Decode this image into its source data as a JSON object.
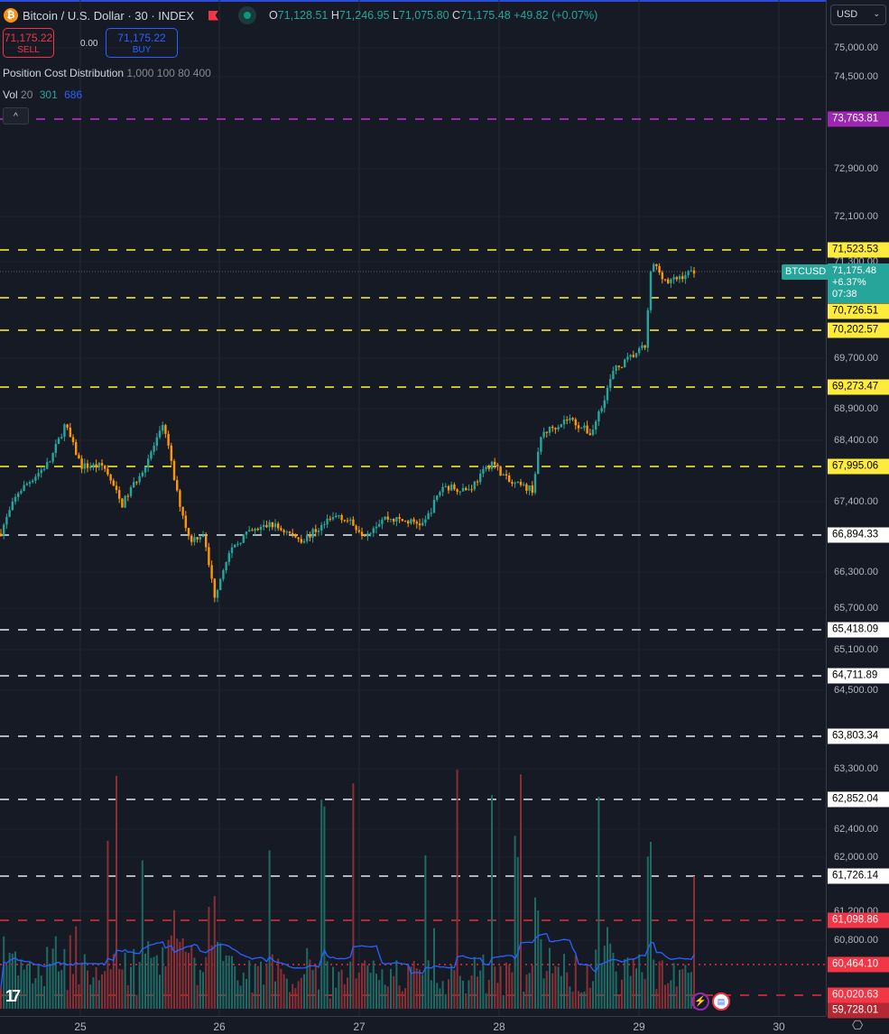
{
  "header": {
    "symbol_icon": "bitcoin-icon",
    "title": "Bitcoin / U.S. Dollar · 30 · INDEX",
    "ohlc": {
      "o_label": "O",
      "o": "71,128.51",
      "h_label": "H",
      "h": "71,246.95",
      "l_label": "L",
      "l": "71,075.80",
      "c_label": "C",
      "c": "71,175.48",
      "change": "+49.82 (+0.07%)"
    }
  },
  "trade": {
    "sell_price": "71,175.22",
    "sell_label": "SELL",
    "spread": "0.00",
    "buy_price": "71,175.22",
    "buy_label": "BUY"
  },
  "indicators": {
    "pcd_name": "Position Cost Distribution",
    "pcd_params": "1,000 100 80 400",
    "vol_name": "Vol",
    "vol_param": "20",
    "vol_value": "301",
    "vol_ma": "686"
  },
  "currency_select": "USD",
  "current_price": {
    "symbol": "BTCUSD",
    "price": "71,175.48",
    "change": "+6.37%",
    "countdown": "07:38"
  },
  "colors": {
    "up": "#26a69a",
    "down": "#ff9800",
    "bg": "#161a25",
    "vol_up": "#1d6b63",
    "vol_down": "#8a2f34",
    "vol_ma": "#2962ff"
  },
  "price_axis": [
    "75,000.00",
    "74,500.00",
    "72,900.00",
    "72,100.00",
    "71,300.00",
    "69,700.00",
    "68,900.00",
    "68,400.00",
    "67,400.00",
    "66,300.00",
    "65,700.00",
    "65,100.00",
    "64,500.00",
    "63,300.00",
    "62,400.00",
    "62,000.00",
    "61,200.00",
    "60,800.00"
  ],
  "levels": [
    {
      "price": "73,763.81",
      "style": "purple"
    },
    {
      "price": "71,523.53",
      "style": "yellow"
    },
    {
      "price": "70,726.51",
      "style": "yellow"
    },
    {
      "price": "70,202.57",
      "style": "yellow"
    },
    {
      "price": "69,273.47",
      "style": "yellow"
    },
    {
      "price": "67,995.06",
      "style": "yellow"
    },
    {
      "price": "66,894.33",
      "style": "white"
    },
    {
      "price": "65,418.09",
      "style": "white"
    },
    {
      "price": "64,711.89",
      "style": "white"
    },
    {
      "price": "63,803.34",
      "style": "white"
    },
    {
      "price": "62,852.04",
      "style": "white"
    },
    {
      "price": "61,726.14",
      "style": "white"
    },
    {
      "price": "61,098.86",
      "style": "red"
    },
    {
      "price": "60,464.10",
      "style": "red-dotted"
    },
    {
      "price": "60,020.63",
      "style": "red"
    },
    {
      "price": "59,728.01",
      "style": "darkred"
    }
  ],
  "time_axis": [
    "25",
    "26",
    "27",
    "28",
    "29",
    "30"
  ],
  "chart_data": {
    "type": "candlestick",
    "interval": "30",
    "price_path": [
      66900,
      67550,
      68050,
      68650,
      67980,
      67980,
      67350,
      67980,
      68650,
      67600,
      66800,
      66900,
      65900,
      66500,
      66870,
      67050,
      66800,
      67200,
      66900,
      67150,
      67050,
      67650,
      67600,
      68050,
      67700,
      67600,
      68500,
      68750,
      68500,
      69500,
      69900,
      71300,
      70950,
      71175.48
    ],
    "event_icons": [
      "lightning-event-icon",
      "us-flag-event-icon"
    ]
  }
}
